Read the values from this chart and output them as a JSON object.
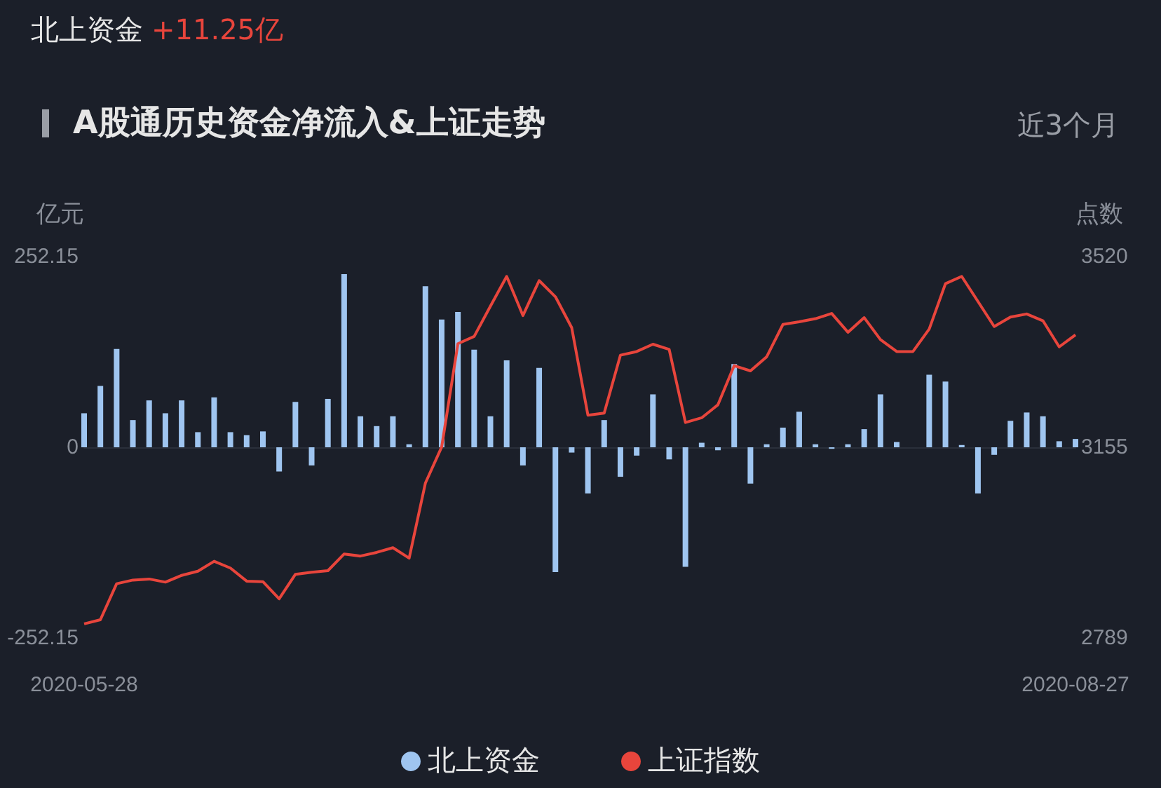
{
  "chart_data": {
    "type": "bar",
    "title": "A股通历史资金净流入&上证走势",
    "ylabel": "亿元",
    "y2label": "点数",
    "annotations": [
      "北上资金",
      "+11.25亿",
      "近3个月"
    ],
    "categories": [
      "2020-05-28",
      null,
      null,
      null,
      null,
      null,
      null,
      null,
      null,
      null,
      null,
      null,
      null,
      null,
      null,
      null,
      null,
      null,
      null,
      null,
      null,
      null,
      null,
      null,
      null,
      null,
      null,
      null,
      null,
      null,
      null,
      null,
      null,
      null,
      null,
      null,
      null,
      null,
      null,
      null,
      null,
      null,
      null,
      null,
      null,
      null,
      null,
      null,
      null,
      null,
      null,
      null,
      null,
      null,
      null,
      null,
      null,
      null,
      null,
      null,
      null,
      "2020-08-27"
    ],
    "series": [
      {
        "name": "北上资金",
        "color": "#9fc5f0",
        "values": [
          45,
          81,
          130,
          36,
          62,
          45,
          62,
          20,
          66,
          20,
          16,
          21,
          -32,
          60,
          -24,
          64,
          229,
          41,
          28,
          41,
          4,
          213,
          169,
          179,
          129,
          41,
          115,
          -24,
          105,
          -165,
          -7,
          -61,
          36,
          -39,
          -11,
          70,
          -16,
          -158,
          6,
          -4,
          110,
          -48,
          4,
          26,
          47,
          4,
          -2,
          4,
          24,
          70,
          7,
          0,
          96,
          87,
          3,
          -61,
          -10,
          35,
          46,
          41,
          8,
          11
        ]
      },
      {
        "name": "上证指数",
        "type": "line",
        "axis": "y2",
        "color": "#e8453c",
        "values": [
          2816,
          2824,
          2893,
          2900,
          2902,
          2896,
          2909,
          2917,
          2936,
          2923,
          2898,
          2897,
          2864,
          2911,
          2915,
          2918,
          2950,
          2946,
          2953,
          2962,
          2942,
          3086,
          3155,
          3353,
          3367,
          3425,
          3482,
          3407,
          3474,
          3443,
          3384,
          3216,
          3220,
          3331,
          3338,
          3352,
          3342,
          3202,
          3211,
          3236,
          3311,
          3301,
          3328,
          3390,
          3395,
          3401,
          3411,
          3375,
          3403,
          3361,
          3338,
          3338,
          3381,
          3468,
          3482,
          3434,
          3386,
          3404,
          3410,
          3397,
          3347,
          3370
        ]
      }
    ],
    "ylim": [
      -252.15,
      252.15
    ],
    "yticks": [
      -252.15,
      0,
      252.15
    ],
    "y2lim": [
      2789,
      3520
    ],
    "y2ticks": [
      2789,
      3155,
      3520
    ],
    "legend": "bottom"
  }
}
